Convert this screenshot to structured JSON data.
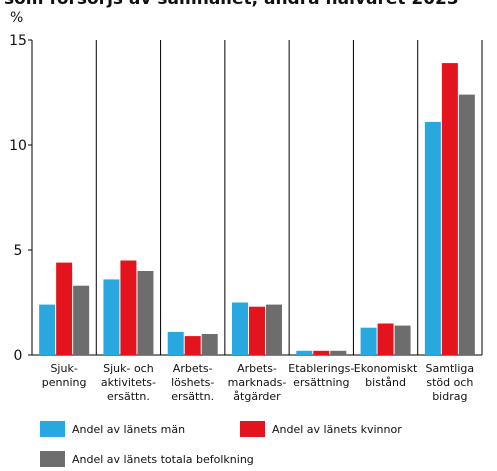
{
  "chart_data": {
    "type": "bar",
    "title": "som försörjs av samhället, andra halvåret 2023",
    "y_label": "%",
    "categories": [
      "Sjuk-\npenning",
      "Sjuk- och\naktivitets-\nersättn.",
      "Arbets-\nlöshets-\nersättn.",
      "Arbets-\nmarknads-\nåtgärder",
      "Etablerings-\nersättning",
      "Ekonomiskt\nbistånd",
      "Samtliga\nstöd och\nbidrag"
    ],
    "series": [
      {
        "name": "Andel av länets män",
        "color": "#29a8e0",
        "values": [
          2.4,
          3.6,
          1.1,
          2.5,
          0.2,
          1.3,
          11.1
        ]
      },
      {
        "name": "Andel av länets kvinnor",
        "color": "#e3141e",
        "values": [
          4.4,
          4.5,
          0.9,
          2.3,
          0.2,
          1.5,
          13.9
        ]
      },
      {
        "name": "Andel av länets totala befolkning",
        "color": "#6d6d6d",
        "values": [
          3.3,
          4.0,
          1.0,
          2.4,
          0.2,
          1.4,
          12.4
        ]
      }
    ],
    "ylim": [
      0,
      15
    ],
    "yticks": [
      0,
      5,
      10,
      15
    ],
    "grid": true
  }
}
